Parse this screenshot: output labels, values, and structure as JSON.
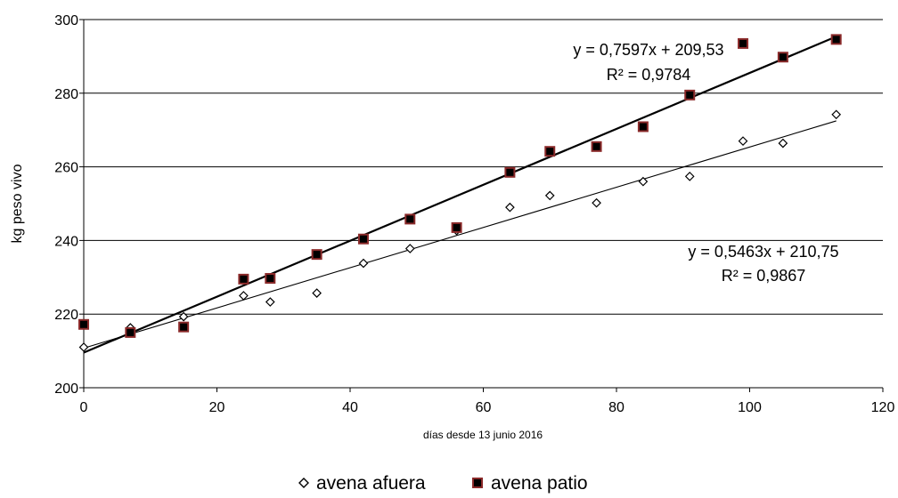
{
  "chart_data": {
    "type": "scatter",
    "xlabel": "días desde 13 junio 2016",
    "ylabel": "kg peso vivo",
    "xlim": [
      0,
      120
    ],
    "ylim": [
      200,
      300
    ],
    "xticks": [
      0,
      20,
      40,
      60,
      80,
      100,
      120
    ],
    "yticks": [
      200,
      220,
      240,
      260,
      280,
      300
    ],
    "xtick_labels": [
      "0",
      "20",
      "40",
      "60",
      "80",
      "100",
      "120"
    ],
    "ytick_labels": [
      "200",
      "220",
      "240",
      "260",
      "280",
      "300"
    ],
    "grid": "horizontal",
    "legend_position": "bottom",
    "series": [
      {
        "name": "avena afuera",
        "marker": "diamond-open",
        "color": "#000000",
        "x": [
          0,
          7,
          15,
          24,
          28,
          35,
          42,
          49,
          56,
          64,
          70,
          77,
          84,
          91,
          99,
          105,
          113
        ],
        "y": [
          211,
          216.3,
          219.3,
          225,
          223.3,
          225.7,
          233.8,
          237.8,
          242.7,
          249,
          252.2,
          250.2,
          256,
          257.4,
          267,
          266.4,
          274.2
        ],
        "trendline": {
          "slope": 0.5463,
          "intercept": 210.75,
          "equation": "y = 0,5463x + 210,75",
          "r2": "R² = 0,9867"
        }
      },
      {
        "name": "avena patio",
        "marker": "square-filled",
        "color": "#8b2a2a",
        "x": [
          0,
          7,
          15,
          24,
          28,
          35,
          42,
          49,
          56,
          64,
          70,
          77,
          84,
          91,
          99,
          105,
          113
        ],
        "y": [
          217.2,
          215,
          216.5,
          229.5,
          229.7,
          236.2,
          240.4,
          245.8,
          243.5,
          258.5,
          264.2,
          265.5,
          270.9,
          279.5,
          293.5,
          289.8,
          294.6
        ],
        "trendline": {
          "slope": 0.7597,
          "intercept": 209.53,
          "equation": "y = 0,7597x + 209,53",
          "r2": "R² = 0,9784"
        }
      }
    ]
  }
}
